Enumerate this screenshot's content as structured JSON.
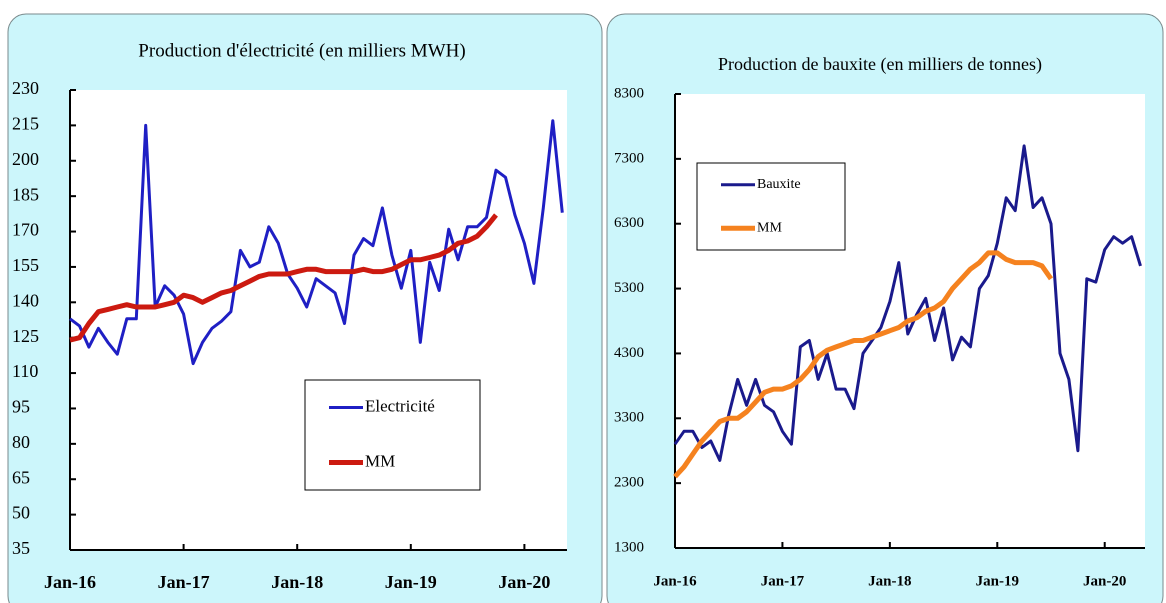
{
  "chart_data": [
    {
      "type": "line",
      "title": "Production d'électricité (en milliers MWH)",
      "categories": [
        "Jan-16",
        null,
        null,
        null,
        null,
        null,
        null,
        null,
        null,
        null,
        null,
        null,
        "Jan-17",
        null,
        null,
        null,
        null,
        null,
        null,
        null,
        null,
        null,
        null,
        null,
        "Jan-18",
        null,
        null,
        null,
        null,
        null,
        null,
        null,
        null,
        null,
        null,
        null,
        "Jan-19",
        null,
        null,
        null,
        null,
        null,
        null,
        null,
        null,
        null,
        null,
        null,
        "Jan-20",
        null,
        null,
        null,
        null
      ],
      "series": [
        {
          "name": "Electricité",
          "color": "#1f1fc4",
          "values": [
            133,
            130,
            121,
            129,
            123,
            118,
            133,
            133,
            215,
            138,
            147,
            143,
            135,
            114,
            123,
            129,
            132,
            136,
            162,
            155,
            157,
            172,
            165,
            152,
            146,
            138,
            150,
            147,
            144,
            131,
            160,
            167,
            164,
            180,
            160,
            146,
            162,
            123,
            157,
            145,
            171,
            158,
            172,
            172,
            176,
            196,
            193,
            177,
            165,
            148,
            180,
            217,
            178
          ]
        },
        {
          "name": "MM",
          "color": "#cc1a10",
          "values": [
            124,
            125,
            131,
            136,
            137,
            138,
            139,
            138,
            138,
            138,
            139,
            140,
            143,
            142,
            140,
            142,
            144,
            145,
            147,
            149,
            151,
            152,
            152,
            152,
            153,
            154,
            154,
            153,
            153,
            153,
            153,
            154,
            153,
            153,
            154,
            156,
            158,
            158,
            159,
            160,
            162,
            165,
            166,
            168,
            172,
            177,
            null,
            null,
            null,
            null,
            null,
            null,
            null
          ]
        }
      ],
      "ylim": [
        35,
        230
      ],
      "yticks": [
        35,
        50,
        65,
        80,
        95,
        110,
        125,
        140,
        155,
        170,
        185,
        200,
        215,
        230
      ],
      "legend": "lower right"
    },
    {
      "type": "line",
      "title": "Production de bauxite (en milliers de tonnes)",
      "categories": [
        "Jan-16",
        null,
        null,
        null,
        null,
        null,
        null,
        null,
        null,
        null,
        null,
        null,
        "Jan-17",
        null,
        null,
        null,
        null,
        null,
        null,
        null,
        null,
        null,
        null,
        null,
        "Jan-18",
        null,
        null,
        null,
        null,
        null,
        null,
        null,
        null,
        null,
        null,
        null,
        "Jan-19",
        null,
        null,
        null,
        null,
        null,
        null,
        null,
        null,
        null,
        null,
        null,
        "Jan-20",
        null,
        null,
        null,
        null
      ],
      "series": [
        {
          "name": "Bauxite",
          "color": "#1a1a8c",
          "values": [
            2900,
            3100,
            3100,
            2850,
            2950,
            2650,
            3350,
            3900,
            3500,
            3900,
            3500,
            3400,
            3100,
            2900,
            4400,
            4500,
            3900,
            4300,
            3750,
            3750,
            3450,
            4300,
            4500,
            4700,
            5100,
            5700,
            4600,
            4900,
            5150,
            4500,
            5000,
            4200,
            4550,
            4400,
            5300,
            5500,
            6000,
            6700,
            6500,
            7500,
            6550,
            6700,
            6300,
            4300,
            3900,
            2800,
            5450,
            5400,
            5900,
            6100,
            6000,
            6100,
            5650
          ]
        },
        {
          "name": "MM",
          "color": "#f5821f",
          "values": [
            2400,
            2550,
            2750,
            2950,
            3100,
            3250,
            3300,
            3300,
            3400,
            3550,
            3700,
            3750,
            3750,
            3800,
            3900,
            4050,
            4250,
            4350,
            4400,
            4450,
            4500,
            4500,
            4550,
            4600,
            4650,
            4700,
            4800,
            4850,
            4950,
            5000,
            5100,
            5300,
            5450,
            5600,
            5700,
            5850,
            5850,
            5750,
            5700,
            5700,
            5700,
            5650,
            5450,
            null,
            null,
            null,
            null,
            null,
            null,
            null,
            null,
            null,
            null
          ]
        }
      ],
      "ylim": [
        1300,
        8300
      ],
      "yticks": [
        1300,
        2300,
        3300,
        4300,
        5300,
        6300,
        7300,
        8300
      ],
      "legend": "upper left"
    }
  ]
}
